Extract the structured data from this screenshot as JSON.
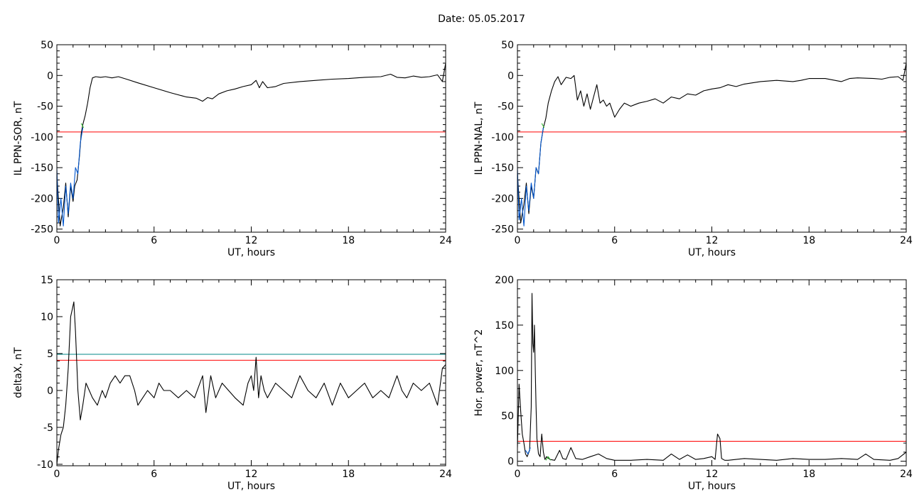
{
  "header": {
    "title": "Date:  05.05.2017"
  },
  "chart_data": [
    {
      "type": "line",
      "xlabel": "UT, hours",
      "ylabel": "IL PPN-SOR, nT",
      "xlim": [
        0,
        24
      ],
      "ylim": [
        -255,
        50
      ],
      "xticks": [
        0,
        6,
        12,
        18,
        24
      ],
      "yticks": [
        50,
        0,
        -50,
        -100,
        -150,
        -200,
        -250
      ],
      "thresholds": [
        {
          "value": -92,
          "color": "#ff0000"
        }
      ],
      "series": [
        {
          "color": "#000000",
          "x": [
            0,
            0.2,
            0.4,
            0.55,
            0.7,
            0.85,
            1.0,
            1.1,
            1.25,
            1.4,
            1.5,
            1.6,
            1.75,
            1.9,
            2.05,
            2.2,
            2.4,
            2.7,
            3.0,
            3.4,
            3.8,
            4.3,
            5.0,
            6.0,
            7.0,
            8.0,
            8.6,
            9.0,
            9.3,
            9.6,
            10.0,
            10.5,
            11.0,
            11.5,
            12.0,
            12.3,
            12.5,
            12.7,
            13.0,
            13.5,
            14.0,
            15.0,
            16.0,
            17.0,
            18.0,
            19.0,
            20.0,
            20.6,
            21.0,
            21.5,
            22.0,
            22.5,
            23.0,
            23.5,
            23.8,
            24.0
          ],
          "y": [
            -160,
            -245,
            -215,
            -175,
            -230,
            -180,
            -205,
            -180,
            -170,
            -130,
            -95,
            -80,
            -65,
            -45,
            -20,
            -4,
            -2,
            -3,
            -2,
            -4,
            -2,
            -6,
            -12,
            -20,
            -28,
            -35,
            -37,
            -42,
            -36,
            -38,
            -30,
            -25,
            -22,
            -18,
            -15,
            -8,
            -20,
            -10,
            -20,
            -18,
            -13,
            -10,
            -8,
            -6,
            -5,
            -3,
            -2,
            2,
            -3,
            -4,
            -1,
            -3,
            -2,
            1,
            -10,
            20
          ]
        },
        {
          "color": "#0055cc",
          "x": [
            0,
            0.1,
            0.25,
            0.4,
            0.55,
            0.7,
            0.85,
            1.0,
            1.15,
            1.3,
            1.45,
            1.6
          ],
          "y": [
            -150,
            -240,
            -200,
            -245,
            -180,
            -225,
            -175,
            -200,
            -150,
            -160,
            -110,
            -85
          ]
        },
        {
          "color": "#33bb33",
          "x": [
            1.5,
            1.65
          ],
          "y": [
            -78,
            -85
          ]
        }
      ]
    },
    {
      "type": "line",
      "xlabel": "UT, hours",
      "ylabel": "IL PPN-NAL, nT",
      "xlim": [
        0,
        24
      ],
      "ylim": [
        -255,
        50
      ],
      "xticks": [
        0,
        6,
        12,
        18,
        24
      ],
      "yticks": [
        50,
        0,
        -50,
        -100,
        -150,
        -200,
        -250
      ],
      "thresholds": [
        {
          "value": -92,
          "color": "#ff0000"
        }
      ],
      "series": [
        {
          "color": "#000000",
          "x": [
            0,
            0.2,
            0.4,
            0.55,
            0.7,
            0.85,
            1.0,
            1.15,
            1.3,
            1.45,
            1.6,
            1.75,
            1.9,
            2.1,
            2.3,
            2.5,
            2.7,
            3.0,
            3.3,
            3.5,
            3.7,
            3.9,
            4.1,
            4.3,
            4.5,
            4.7,
            4.9,
            5.1,
            5.3,
            5.5,
            5.7,
            6.0,
            6.3,
            6.6,
            7.0,
            7.5,
            8.0,
            8.5,
            9.0,
            9.5,
            10.0,
            10.5,
            11.0,
            11.5,
            12.0,
            12.5,
            13.0,
            13.5,
            14.0,
            15.0,
            16.0,
            17.0,
            17.5,
            18.0,
            19.0,
            20.0,
            20.5,
            21.0,
            22.0,
            22.5,
            23.0,
            23.5,
            23.8,
            24.0
          ],
          "y": [
            -160,
            -240,
            -210,
            -175,
            -225,
            -180,
            -200,
            -150,
            -160,
            -110,
            -85,
            -70,
            -45,
            -25,
            -10,
            -2,
            -15,
            -3,
            -5,
            0,
            -40,
            -25,
            -50,
            -30,
            -55,
            -35,
            -15,
            -45,
            -40,
            -50,
            -45,
            -68,
            -55,
            -45,
            -50,
            -45,
            -42,
            -38,
            -45,
            -35,
            -38,
            -30,
            -32,
            -25,
            -22,
            -20,
            -15,
            -18,
            -14,
            -10,
            -8,
            -10,
            -8,
            -5,
            -5,
            -10,
            -5,
            -4,
            -5,
            -6,
            -3,
            -2,
            -8,
            20
          ]
        },
        {
          "color": "#0055cc",
          "x": [
            0,
            0.1,
            0.25,
            0.4,
            0.55,
            0.7,
            0.85,
            1.0,
            1.15,
            1.3,
            1.45,
            1.6
          ],
          "y": [
            -150,
            -235,
            -200,
            -245,
            -180,
            -220,
            -175,
            -200,
            -150,
            -160,
            -110,
            -85
          ]
        },
        {
          "color": "#33bb33",
          "x": [
            1.5,
            1.65
          ],
          "y": [
            -78,
            -85
          ]
        }
      ]
    },
    {
      "type": "line",
      "xlabel": "UT, hours",
      "ylabel": "deltaX, nT",
      "xlim": [
        0,
        24
      ],
      "ylim": [
        -10.2,
        15
      ],
      "xticks": [
        0,
        6,
        12,
        18,
        24
      ],
      "yticks": [
        15,
        10,
        5,
        0,
        -5,
        -10
      ],
      "thresholds": [
        {
          "value": 4.9,
          "color": "#008888"
        },
        {
          "value": 4.1,
          "color": "#ff0000"
        }
      ],
      "series": [
        {
          "color": "#000000",
          "x": [
            0,
            0.1,
            0.25,
            0.4,
            0.55,
            0.7,
            0.85,
            0.95,
            1.05,
            1.15,
            1.3,
            1.45,
            1.6,
            1.8,
            2.0,
            2.2,
            2.5,
            2.8,
            3.0,
            3.3,
            3.6,
            3.9,
            4.2,
            4.5,
            4.8,
            5.0,
            5.3,
            5.6,
            6.0,
            6.3,
            6.6,
            7.0,
            7.5,
            8.0,
            8.5,
            9.0,
            9.2,
            9.5,
            9.8,
            10.2,
            10.6,
            11.0,
            11.5,
            11.8,
            12.0,
            12.15,
            12.3,
            12.45,
            12.6,
            12.8,
            13.0,
            13.5,
            14.0,
            14.5,
            15.0,
            15.5,
            16.0,
            16.5,
            17.0,
            17.5,
            18.0,
            18.5,
            19.0,
            19.5,
            20.0,
            20.5,
            21.0,
            21.3,
            21.6,
            22.0,
            22.5,
            23.0,
            23.5,
            23.8,
            24.0
          ],
          "y": [
            -10,
            -8,
            -6,
            -5,
            -2,
            3,
            10,
            11,
            12,
            8,
            0,
            -4,
            -2,
            1,
            0,
            -1,
            -2,
            0,
            -1,
            1,
            2,
            1,
            2,
            2,
            0,
            -2,
            -1,
            0,
            -1,
            1,
            0,
            0,
            -1,
            0,
            -1,
            2,
            -3,
            2,
            -1,
            1,
            0,
            -1,
            -2,
            1,
            2,
            0,
            4.5,
            -1,
            2,
            0,
            -1,
            1,
            0,
            -1,
            2,
            0,
            -1,
            1,
            -2,
            1,
            -1,
            0,
            1,
            -1,
            0,
            -1,
            2,
            0,
            -1,
            1,
            0,
            1,
            -2,
            3,
            3.5
          ]
        }
      ]
    },
    {
      "type": "line",
      "xlabel": "UT, hours",
      "ylabel": "Hor. power, nT^2",
      "xlim": [
        0,
        24
      ],
      "ylim": [
        -5,
        200
      ],
      "xticks": [
        0,
        6,
        12,
        18,
        24
      ],
      "yticks": [
        200,
        150,
        100,
        50,
        0
      ],
      "thresholds": [
        {
          "value": 22,
          "color": "#ff0000"
        }
      ],
      "series": [
        {
          "color": "#000000",
          "x": [
            0,
            0.1,
            0.2,
            0.3,
            0.4,
            0.5,
            0.6,
            0.75,
            0.85,
            0.9,
            0.95,
            1.0,
            1.05,
            1.1,
            1.15,
            1.2,
            1.3,
            1.4,
            1.5,
            1.6,
            1.7,
            1.8,
            2.0,
            2.3,
            2.6,
            2.8,
            3.0,
            3.3,
            3.6,
            4.0,
            4.5,
            5.0,
            5.5,
            6.0,
            7.0,
            8.0,
            9.0,
            9.5,
            10.0,
            10.5,
            11.0,
            11.5,
            12.0,
            12.2,
            12.35,
            12.5,
            12.6,
            12.8,
            13.0,
            14.0,
            15.0,
            16.0,
            17.0,
            18.0,
            19.0,
            20.0,
            21.0,
            21.5,
            22.0,
            23.0,
            23.5,
            24.0
          ],
          "y": [
            15,
            85,
            55,
            30,
            20,
            8,
            5,
            12,
            60,
            185,
            130,
            120,
            150,
            100,
            60,
            25,
            8,
            5,
            30,
            10,
            2,
            5,
            2,
            1,
            12,
            3,
            2,
            15,
            3,
            2,
            5,
            8,
            3,
            1,
            1,
            2,
            1,
            8,
            2,
            7,
            2,
            3,
            5,
            2,
            30,
            25,
            3,
            1,
            1,
            3,
            2,
            1,
            3,
            2,
            2,
            3,
            2,
            8,
            2,
            1,
            3,
            10
          ]
        },
        {
          "color": "#0055cc",
          "x": [
            0.5,
            0.65,
            0.8
          ],
          "y": [
            12,
            8,
            15
          ]
        },
        {
          "color": "#33bb33",
          "x": [
            1.75,
            1.9,
            2.05
          ],
          "y": [
            1,
            5,
            1
          ]
        }
      ]
    }
  ]
}
